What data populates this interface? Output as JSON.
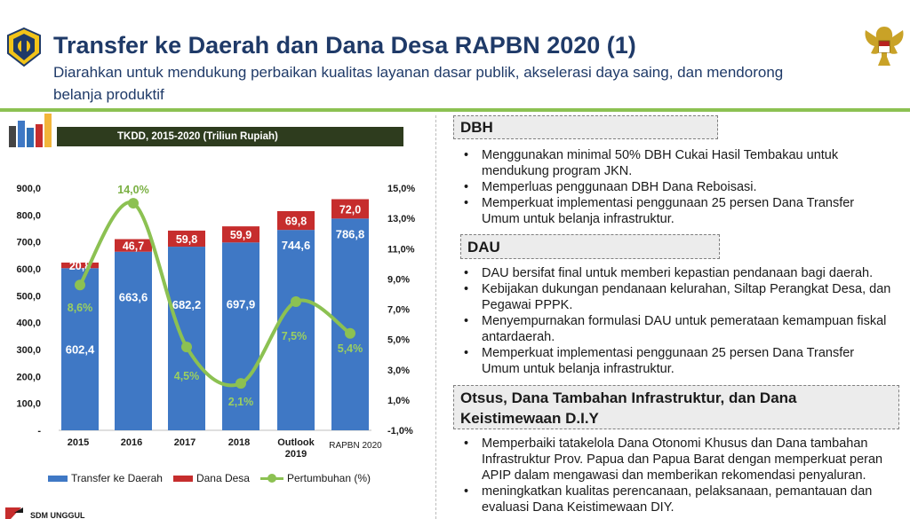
{
  "header": {
    "title": "Transfer ke Daerah dan Dana Desa RAPBN 2020 (1)",
    "subtitle": "Diarahkan untuk mendukung perbaikan kualitas layanan dasar publik, akselerasi daya saing, dan mendorong belanja produktif"
  },
  "chart_banner": "TKDD, 2015-2020  (Triliun Rupiah)",
  "chart_data": {
    "type": "bar",
    "stacked": true,
    "title": "TKDD, 2015-2020  (Triliun Rupiah)",
    "categories": [
      "2015",
      "2016",
      "2017",
      "2018",
      "Outlook 2019",
      "RAPBN 2020"
    ],
    "series": [
      {
        "name": "Transfer ke Daerah",
        "values": [
          602.4,
          663.6,
          682.2,
          697.9,
          744.6,
          786.8
        ],
        "labels": [
          "602,4",
          "663,6",
          "682,2",
          "697,9",
          "744,6",
          "786,8"
        ],
        "color": "#3f78c5"
      },
      {
        "name": "Dana Desa",
        "values": [
          20.8,
          46.7,
          59.8,
          59.9,
          69.8,
          72.0
        ],
        "labels": [
          "20,8",
          "46,7",
          "59,8",
          "59,9",
          "69,8",
          "72,0"
        ],
        "color": "#c62d2d"
      },
      {
        "name": "Pertumbuhan (%)",
        "axis": "right",
        "type": "line",
        "values": [
          8.6,
          14.0,
          4.5,
          2.1,
          7.5,
          5.4
        ],
        "labels": [
          "8,6%",
          "14,0%",
          "4,5%",
          "2,1%",
          "7,5%",
          "5,4%"
        ],
        "color": "#8cc152"
      }
    ],
    "ylim": [
      0,
      900
    ],
    "y2lim": [
      -1.0,
      15.0
    ],
    "y_ticks": [
      "-",
      "100,0",
      "200,0",
      "300,0",
      "400,0",
      "500,0",
      "600,0",
      "700,0",
      "800,0",
      "900,0"
    ],
    "y2_ticks": [
      "-1,0%",
      "1,0%",
      "3,0%",
      "5,0%",
      "7,0%",
      "9,0%",
      "11,0%",
      "13,0%",
      "15,0%"
    ],
    "legend": [
      "Transfer ke Daerah",
      "Dana Desa",
      "Pertumbuhan (%)"
    ],
    "legend_position": "bottom",
    "grid": false
  },
  "sections": {
    "dbh": {
      "title": "DBH",
      "items": [
        "Menggunakan minimal 50% DBH Cukai Hasil Tembakau untuk mendukung program JKN.",
        "Memperluas penggunaan DBH Dana Reboisasi.",
        "Memperkuat implementasi penggunaan 25 persen Dana Transfer Umum untuk belanja infrastruktur."
      ]
    },
    "dau": {
      "title": "DAU",
      "items": [
        "DAU bersifat final untuk memberi kepastian pendanaan bagi daerah.",
        "Kebijakan dukungan pendanaan kelurahan, Siltap Perangkat Desa, dan Pegawai PPPK.",
        "Menyempurnakan formulasi DAU untuk pemerataan kemampuan fiskal antardaerah.",
        "Memperkuat implementasi penggunaan 25 persen Dana Transfer Umum untuk belanja infrastruktur."
      ]
    },
    "otsus": {
      "title": "Otsus, Dana Tambahan Infrastruktur, dan Dana Keistimewaan D.I.Y",
      "items": [
        "Memperbaiki tatakelola Dana Otonomi Khusus dan Dana tambahan Infrastruktur Prov. Papua dan Papua Barat dengan memperkuat peran APIP dalam mengawasi dan memberikan rekomendasi penyaluran.",
        "meningkatkan kualitas perencanaan, pelaksanaan, pemantauan dan evaluasi Dana Keistimewaan DIY."
      ]
    }
  },
  "footer": {
    "logo_text": "SDM UNGGUL"
  },
  "colors": {
    "title": "#1f3a68",
    "accent_green": "#8cc152",
    "banner_bg": "#2e3c1e",
    "bar_blue": "#3f78c5",
    "bar_red": "#c62d2d"
  },
  "icons": {
    "left_logo": "ministry-of-finance-emblem-icon",
    "right_logo": "garuda-emblem-icon",
    "chart_decoration": "books-icon"
  }
}
